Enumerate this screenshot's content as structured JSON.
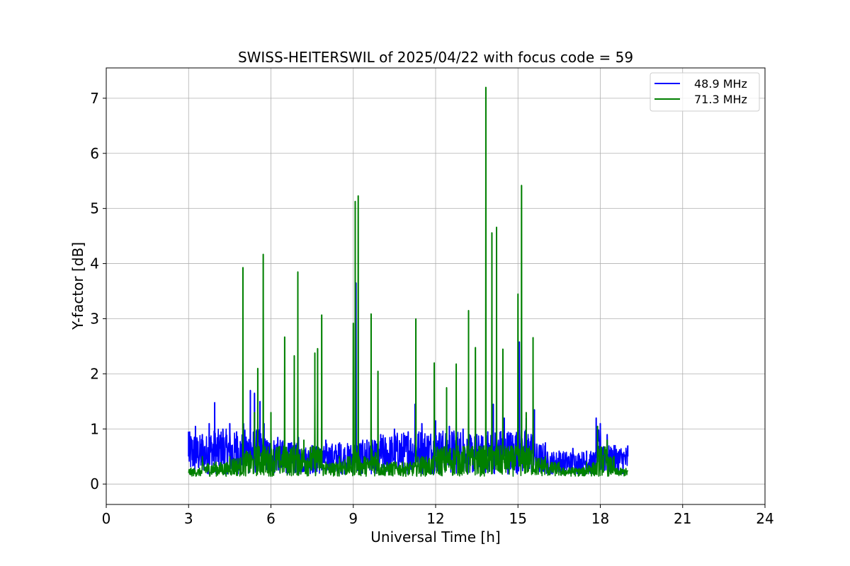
{
  "chart_data": {
    "type": "line",
    "title": "SWISS-HEITERSWIL of 2025/04/22 with focus code = 59",
    "xlabel": "Universal Time [h]",
    "ylabel": "Y-factor [dB]",
    "xlim": [
      0,
      24
    ],
    "ylim": [
      -0.37,
      7.55
    ],
    "xticks": [
      0,
      3,
      6,
      9,
      12,
      15,
      18,
      21,
      24
    ],
    "yticks": [
      0,
      1,
      2,
      3,
      4,
      5,
      6,
      7
    ],
    "grid": true,
    "legend_position": "top-right",
    "series": [
      {
        "name": "48.9 MHz",
        "color": "#0000ff",
        "x": [
          3.0,
          3.25,
          3.5,
          3.75,
          3.95,
          4.25,
          4.5,
          4.75,
          5.0,
          5.25,
          5.4,
          5.6,
          5.75,
          6.0,
          6.25,
          6.5,
          6.75,
          7.0,
          7.5,
          8.0,
          8.5,
          9.0,
          9.1,
          9.5,
          10.0,
          10.5,
          11.0,
          11.25,
          11.5,
          12.0,
          12.5,
          13.0,
          13.5,
          13.9,
          14.1,
          14.5,
          15.0,
          15.05,
          15.3,
          15.6,
          16.0,
          16.5,
          17.0,
          17.5,
          17.85,
          18.0,
          18.25,
          18.5,
          19.0
        ],
        "values": [
          0.95,
          1.05,
          0.9,
          1.1,
          1.48,
          1.0,
          1.1,
          0.95,
          1.1,
          1.7,
          1.65,
          1.5,
          1.1,
          0.85,
          0.85,
          0.8,
          0.75,
          0.85,
          0.7,
          0.8,
          0.75,
          0.8,
          3.65,
          0.8,
          0.9,
          1.0,
          0.95,
          1.45,
          1.1,
          1.15,
          1.05,
          1.0,
          0.9,
          0.95,
          1.45,
          1.2,
          1.0,
          2.58,
          1.2,
          1.35,
          0.75,
          0.6,
          0.65,
          0.6,
          1.2,
          1.1,
          0.9,
          0.7,
          0.7
        ]
      },
      {
        "name": "71.3 MHz",
        "color": "#008000",
        "x": [
          3.0,
          3.5,
          4.0,
          4.5,
          4.98,
          5.1,
          5.4,
          5.52,
          5.72,
          6.0,
          6.5,
          6.85,
          6.98,
          7.2,
          7.6,
          7.7,
          7.85,
          8.0,
          8.5,
          9.0,
          9.07,
          9.18,
          9.4,
          9.65,
          9.9,
          10.5,
          11.28,
          11.5,
          11.95,
          12.4,
          12.75,
          13.2,
          13.45,
          13.83,
          14.05,
          14.22,
          14.45,
          15.0,
          15.13,
          15.3,
          15.55,
          16.0,
          16.5,
          17.0,
          17.5,
          17.9,
          18.25,
          18.5,
          19.0
        ],
        "values": [
          0.2,
          0.5,
          0.4,
          0.5,
          3.93,
          0.6,
          1.3,
          2.1,
          4.17,
          1.3,
          2.67,
          2.33,
          3.85,
          0.8,
          2.38,
          2.46,
          3.07,
          0.4,
          0.5,
          2.92,
          5.13,
          5.23,
          0.5,
          3.09,
          2.05,
          0.4,
          3.0,
          0.5,
          2.2,
          1.75,
          2.18,
          3.15,
          2.48,
          7.2,
          4.56,
          4.66,
          2.45,
          3.45,
          5.42,
          1.3,
          2.66,
          0.5,
          0.4,
          0.3,
          0.4,
          1.05,
          0.8,
          0.5,
          0.25
        ]
      }
    ]
  }
}
